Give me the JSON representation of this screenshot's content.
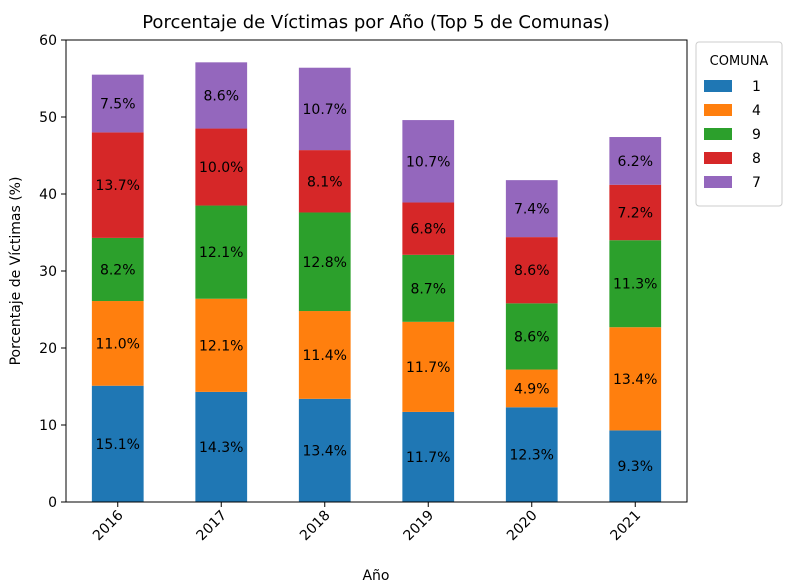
{
  "chart_data": {
    "type": "bar",
    "stacked": true,
    "title": "Porcentaje de Víctimas por Año (Top 5 de Comunas)",
    "xlabel": "Año",
    "ylabel": "Porcentaje de Víctimas (%)",
    "ylim": [
      0,
      60
    ],
    "yticks": [
      0,
      10,
      20,
      30,
      40,
      50,
      60
    ],
    "categories": [
      "2016",
      "2017",
      "2018",
      "2019",
      "2020",
      "2021"
    ],
    "legend": {
      "title": "COMUNA",
      "placement": "outside-top-right"
    },
    "grid": false,
    "series": [
      {
        "name": "1",
        "color": "#1f77b4",
        "values": [
          15.1,
          14.3,
          13.4,
          11.7,
          12.3,
          9.3
        ],
        "labels": [
          "15.1%",
          "14.3%",
          "13.4%",
          "11.7%",
          "12.3%",
          "9.3%"
        ]
      },
      {
        "name": "4",
        "color": "#ff7f0e",
        "values": [
          11.0,
          12.1,
          11.4,
          11.7,
          4.9,
          13.4
        ],
        "labels": [
          "11.0%",
          "12.1%",
          "11.4%",
          "11.7%",
          "4.9%",
          "13.4%"
        ]
      },
      {
        "name": "9",
        "color": "#2ca02c",
        "values": [
          8.2,
          12.1,
          12.8,
          8.7,
          8.6,
          11.3
        ],
        "labels": [
          "8.2%",
          "12.1%",
          "12.8%",
          "8.7%",
          "8.6%",
          "11.3%"
        ]
      },
      {
        "name": "8",
        "color": "#d62728",
        "values": [
          13.7,
          10.0,
          8.1,
          6.8,
          8.6,
          7.2
        ],
        "labels": [
          "13.7%",
          "10.0%",
          "8.1%",
          "6.8%",
          "8.6%",
          "7.2%"
        ]
      },
      {
        "name": "7",
        "color": "#9467bd",
        "values": [
          7.5,
          8.6,
          10.7,
          10.7,
          7.4,
          6.2
        ],
        "labels": [
          "7.5%",
          "8.6%",
          "10.7%",
          "10.7%",
          "7.4%",
          "6.2%"
        ]
      }
    ]
  }
}
